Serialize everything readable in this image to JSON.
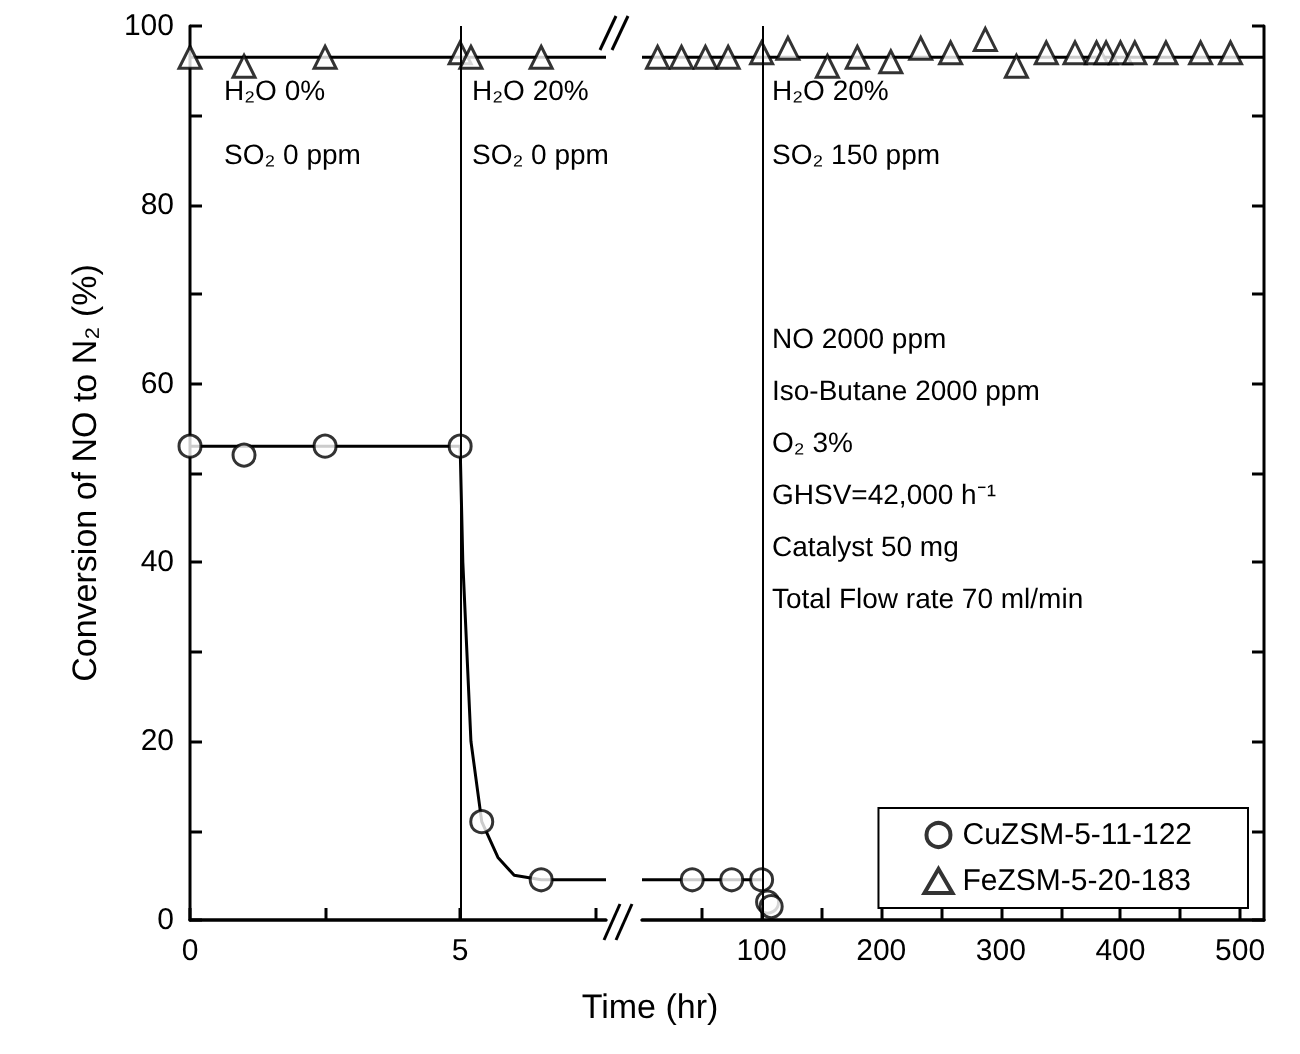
{
  "chart_data": [
    {
      "type": "scatter",
      "ylabel": "Conversion of NO to N₂ (%)",
      "xlim": [
        0,
        7.7
      ],
      "xticks": [
        0,
        {
          "value": 2.5,
          "label": null
        },
        5,
        {
          "value": 7.5,
          "label": null
        }
      ],
      "ylim": [
        0,
        100
      ],
      "yticks": [
        0,
        {
          "value": 10,
          "label": null
        },
        20,
        {
          "value": 30,
          "label": null
        },
        40,
        {
          "value": 50,
          "label": null
        },
        60,
        {
          "value": 70,
          "label": null
        },
        80,
        {
          "value": 90,
          "label": null
        },
        100
      ],
      "grid": false,
      "legend": false,
      "ref_lines": [
        {
          "axis": "x",
          "value": 5,
          "color": "#000000",
          "line_style": "solid"
        }
      ],
      "annotations": [
        "H₂O 0%",
        "SO₂ 0 ppm",
        "H₂O 20%",
        "SO₂ 0 ppm"
      ],
      "series": [
        {
          "marker": "circle",
          "color": "#000000",
          "x": [
            0,
            1,
            2.5,
            5,
            5.4,
            6.5
          ],
          "values": [
            53,
            52,
            53,
            53,
            11,
            4.5
          ]
        },
        {
          "marker": "triangle",
          "color": "#000000",
          "x": [
            0,
            1,
            2.5,
            5,
            5.2,
            6.5
          ],
          "values": [
            96.5,
            95.5,
            96.5,
            97,
            96.5,
            96.5
          ]
        },
        {
          "type": "line",
          "marker": "none",
          "line_style": "solid",
          "color": "#000000",
          "x": [
            0,
            5,
            5.05,
            5.2,
            5.4,
            5.7,
            6,
            6.5,
            7.7
          ],
          "values": [
            53,
            53,
            40,
            20,
            11,
            7,
            5,
            4.5,
            4.5
          ]
        },
        {
          "type": "line",
          "marker": "none",
          "line_style": "solid",
          "color": "#000000",
          "x": [
            0,
            7.7
          ],
          "values": [
            96.5,
            96.5
          ]
        }
      ]
    },
    {
      "type": "scatter",
      "xlabel": "Time (hr)",
      "xlim": [
        0,
        520
      ],
      "xticks": [
        {
          "value": 50,
          "label": null
        },
        100,
        {
          "value": 150,
          "label": null
        },
        200,
        {
          "value": 250,
          "label": null
        },
        300,
        {
          "value": 350,
          "label": null
        },
        400,
        {
          "value": 450,
          "label": null
        },
        500
      ],
      "ylim": [
        0,
        100
      ],
      "yticks": [
        0,
        {
          "value": 10,
          "label": null
        },
        20,
        {
          "value": 30,
          "label": null
        },
        40,
        {
          "value": 50,
          "label": null
        },
        60,
        {
          "value": 70,
          "label": null
        },
        80,
        {
          "value": 90,
          "label": null
        },
        100
      ],
      "tick_labels": "x",
      "grid": false,
      "legend": "bottom right",
      "ref_lines": [
        {
          "axis": "x",
          "value": 100,
          "color": "#000000",
          "line_style": "solid"
        }
      ],
      "annotations": [
        "H₂O 20%",
        "SO₂ 150 ppm",
        "NO 2000 ppm",
        "Iso-Butane 2000 ppm",
        "O₂ 3%",
        "GHSV=42,000 h⁻¹",
        "Catalyst 50 mg",
        "Total Flow rate 70 ml/min"
      ],
      "series": [
        {
          "name": "CuZSM-5-11-122",
          "marker": "circle",
          "color": "#000000",
          "x": [
            42,
            75,
            100,
            105,
            108
          ],
          "values": [
            4.5,
            4.5,
            4.5,
            2,
            1.5
          ]
        },
        {
          "name": "FeZSM-5-20-183",
          "marker": "triangle",
          "color": "#000000",
          "x": [
            13,
            33,
            53,
            72,
            100,
            122,
            155,
            180,
            208,
            233,
            258,
            287,
            313,
            338,
            362,
            380,
            388,
            400,
            412,
            438,
            467,
            492
          ],
          "values": [
            96.5,
            96.5,
            96.5,
            96.5,
            97,
            97.5,
            95.5,
            96.5,
            96,
            97.5,
            97,
            98.5,
            95.5,
            97,
            97,
            97,
            97,
            97,
            97,
            97,
            97,
            97
          ]
        },
        {
          "type": "line",
          "marker": "none",
          "line_style": "solid",
          "color": "#000000",
          "x": [
            0,
            100
          ],
          "values": [
            4.5,
            4.5
          ]
        },
        {
          "type": "line",
          "marker": "none",
          "line_style": "solid",
          "color": "#000000",
          "x": [
            0,
            520
          ],
          "values": [
            96.5,
            96.5
          ]
        }
      ]
    }
  ]
}
